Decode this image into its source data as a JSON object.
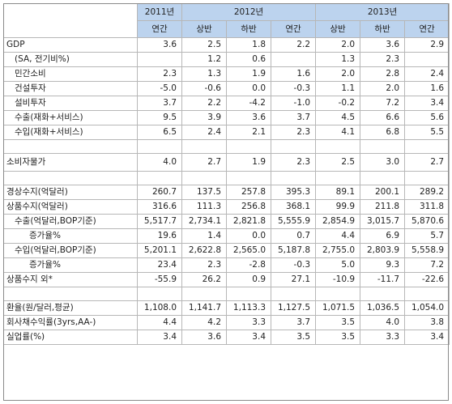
{
  "header": {
    "years": [
      "2011년",
      "2012년",
      "2013년"
    ],
    "periods": [
      "연간",
      "상반",
      "하반",
      "연간",
      "상반",
      "하반",
      "연간"
    ]
  },
  "rows": [
    {
      "label": "GDP",
      "indent": 0,
      "values": [
        "3.6",
        "2.5",
        "1.8",
        "2.2",
        "2.0",
        "3.6",
        "2.9"
      ]
    },
    {
      "label": "(SA, 전기비%)",
      "indent": 1,
      "values": [
        "",
        "1.2",
        "0.6",
        "",
        "1.3",
        "2.3",
        ""
      ]
    },
    {
      "label": "민간소비",
      "indent": 1,
      "values": [
        "2.3",
        "1.3",
        "1.9",
        "1.6",
        "2.0",
        "2.8",
        "2.4"
      ]
    },
    {
      "label": "건설투자",
      "indent": 1,
      "values": [
        "-5.0",
        "-0.6",
        "0.0",
        "-0.3",
        "1.1",
        "2.0",
        "1.6"
      ]
    },
    {
      "label": "설비투자",
      "indent": 1,
      "values": [
        "3.7",
        "2.2",
        "-4.2",
        "-1.0",
        "-0.2",
        "7.2",
        "3.4"
      ]
    },
    {
      "label": "수출(재화+서비스)",
      "indent": 1,
      "values": [
        "9.5",
        "3.9",
        "3.6",
        "3.7",
        "4.5",
        "6.6",
        "5.6"
      ]
    },
    {
      "label": "수입(재화+서비스)",
      "indent": 1,
      "values": [
        "6.5",
        "2.4",
        "2.1",
        "2.3",
        "4.1",
        "6.8",
        "5.5"
      ]
    },
    {
      "spacer": true
    },
    {
      "label": "소비자물가",
      "indent": 0,
      "tall": true,
      "values": [
        "4.0",
        "2.7",
        "1.9",
        "2.3",
        "2.5",
        "3.0",
        "2.7"
      ]
    },
    {
      "spacer": true
    },
    {
      "label": "경상수지(억달러)",
      "indent": 0,
      "values": [
        "260.7",
        "137.5",
        "257.8",
        "395.3",
        "89.1",
        "200.1",
        "289.2"
      ]
    },
    {
      "label": "상품수지(억달러)",
      "indent": 0,
      "values": [
        "316.6",
        "111.3",
        "256.8",
        "368.1",
        "99.9",
        "211.8",
        "311.8"
      ]
    },
    {
      "label": "수출(억달러,BOP기준)",
      "indent": 1,
      "values": [
        "5,517.7",
        "2,734.1",
        "2,821.8",
        "5,555.9",
        "2,854.9",
        "3,015.7",
        "5,870.6"
      ]
    },
    {
      "label": "증가율%",
      "indent": 2,
      "values": [
        "19.6",
        "1.4",
        "0.0",
        "0.7",
        "4.4",
        "6.9",
        "5.7"
      ]
    },
    {
      "label": "수입(억달러,BOP기준)",
      "indent": 1,
      "values": [
        "5,201.1",
        "2,622.8",
        "2,565.0",
        "5,187.8",
        "2,755.0",
        "2,803.9",
        "5,558.9"
      ]
    },
    {
      "label": "증가율%",
      "indent": 2,
      "values": [
        "23.4",
        "2.3",
        "-2.8",
        "-0.3",
        "5.0",
        "9.3",
        "7.2"
      ]
    },
    {
      "label": "상품수지 외*",
      "indent": 0,
      "values": [
        "-55.9",
        "26.2",
        "0.9",
        "27.1",
        "-10.9",
        "-11.7",
        "-22.6"
      ]
    },
    {
      "spacer": true
    },
    {
      "label": "환율(원/달러,평균)",
      "indent": 0,
      "values": [
        "1,108.0",
        "1,141.7",
        "1,113.3",
        "1,127.5",
        "1,071.5",
        "1,036.5",
        "1,054.0"
      ]
    },
    {
      "label": "회사채수익률(3yrs,AA-)",
      "indent": 0,
      "values": [
        "4.4",
        "4.2",
        "3.3",
        "3.7",
        "3.5",
        "4.0",
        "3.8"
      ]
    },
    {
      "label": "실업률(%)",
      "indent": 0,
      "values": [
        "3.4",
        "3.6",
        "3.4",
        "3.5",
        "3.5",
        "3.3",
        "3.4"
      ]
    }
  ]
}
